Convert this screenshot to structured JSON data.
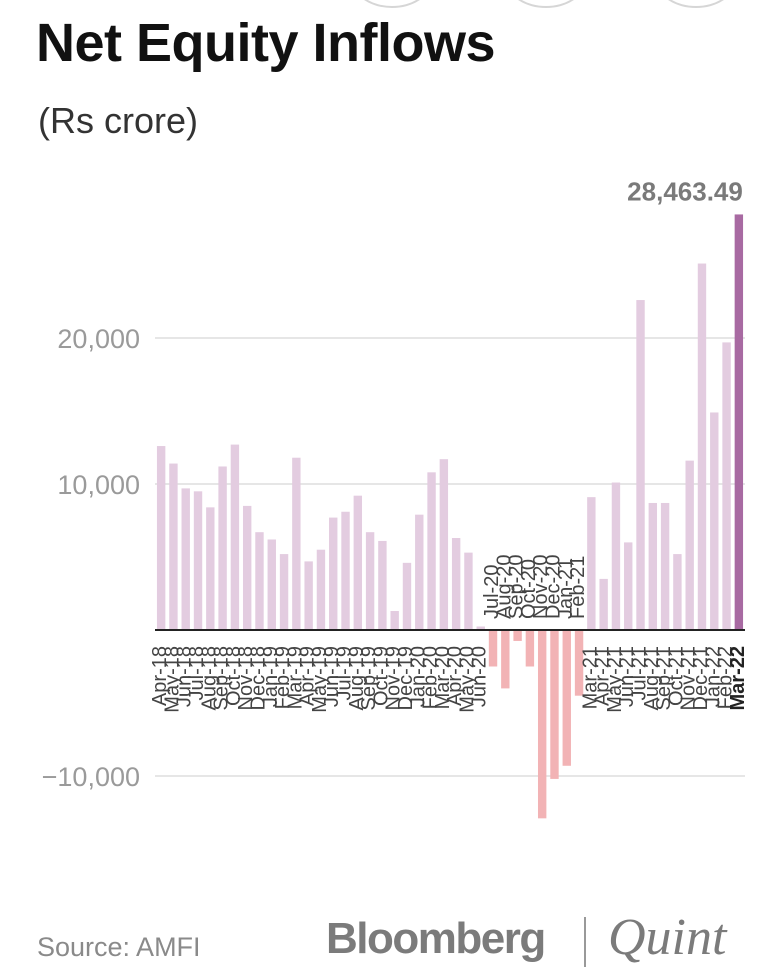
{
  "header": {
    "title": "Net Equity Inflows",
    "subtitle": "(Rs crore)"
  },
  "footer": {
    "source": "Source: AMFI",
    "brand_primary": "Bloomberg",
    "brand_secondary": "Quint"
  },
  "colors": {
    "positive": "#e3cce0",
    "negative": "#f2b3b5",
    "highlight": "#a86aa2",
    "grid": "#e6e6e6",
    "axis_text": "#9a9a9a"
  },
  "chart_data": {
    "type": "bar",
    "title": "Net Equity Inflows",
    "subtitle": "(Rs crore)",
    "ylim": [
      -13500,
      30500
    ],
    "yticks": [
      -10000,
      10000,
      20000
    ],
    "ytick_labels": [
      "−10,000",
      "10,000",
      "20,000"
    ],
    "grid": true,
    "highlight_annotation": "28,463.49",
    "categories": [
      "Apr-18",
      "May-18",
      "Jun-18",
      "Jul-18",
      "Aug-18",
      "Sep-18",
      "Oct-18",
      "Nov-18",
      "Dec-18",
      "Jan-19",
      "Feb-19",
      "Mar-19",
      "Apr-19",
      "May-19",
      "Jun-19",
      "Jul-19",
      "Aug-19",
      "Sep-19",
      "Oct-19",
      "Nov-19",
      "Dec-19",
      "Jan-20",
      "Feb-20",
      "Mar-20",
      "Apr-20",
      "May-20",
      "Jun-20",
      "Jul-20",
      "Aug-20",
      "Sep-20",
      "Oct-20",
      "Nov-20",
      "Dec-20",
      "Jan-21",
      "Feb-21",
      "Mar-21",
      "Apr-21",
      "May-21",
      "Jun-21",
      "Jul-21",
      "Aug-21",
      "Sep-21",
      "Oct-21",
      "Nov-21",
      "Dec-21",
      "Jan-22",
      "Feb-22",
      "Mar-22"
    ],
    "values": [
      12600,
      11400,
      9700,
      9500,
      8400,
      11200,
      12700,
      8500,
      6700,
      6200,
      5200,
      11800,
      4700,
      5500,
      7700,
      8100,
      9200,
      6700,
      6100,
      1300,
      4600,
      7900,
      10800,
      11700,
      6300,
      5300,
      240,
      -2500,
      -4000,
      -750,
      -2500,
      -12900,
      -10200,
      -9300,
      -4500,
      9100,
      3500,
      10100,
      6000,
      22600,
      8700,
      8700,
      5200,
      11600,
      25100,
      14900,
      19700,
      28463.49
    ],
    "highlight_index": 47,
    "label_side": [
      "below",
      "below",
      "below",
      "below",
      "below",
      "below",
      "below",
      "below",
      "below",
      "below",
      "below",
      "below",
      "below",
      "below",
      "below",
      "below",
      "below",
      "below",
      "below",
      "below",
      "below",
      "below",
      "below",
      "below",
      "below",
      "below",
      "below",
      "above",
      "above",
      "above",
      "above",
      "above",
      "above",
      "above",
      "above",
      "below",
      "below",
      "below",
      "below",
      "below",
      "below",
      "below",
      "below",
      "below",
      "below",
      "below",
      "below",
      "below"
    ]
  }
}
